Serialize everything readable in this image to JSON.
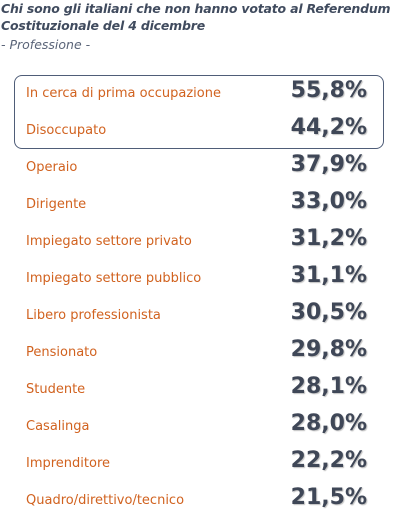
{
  "chart_data": {
    "type": "table",
    "title_line1": "Chi sono gli italiani che non hanno votato al Referendum",
    "title_line2": "Costituzionale del 4 dicembre",
    "subtitle": "- Professione -",
    "highlighted_rows": 2,
    "colors": {
      "label": "#d1621f",
      "value": "#3f4757",
      "title": "#404b5e",
      "box": "#4f5d78"
    },
    "rows": [
      {
        "label": "In cerca di prima occupazione",
        "value": "55,8%"
      },
      {
        "label": "Disoccupato",
        "value": "44,2%"
      },
      {
        "label": "Operaio",
        "value": "37,9%"
      },
      {
        "label": "Dirigente",
        "value": "33,0%"
      },
      {
        "label": "Impiegato settore privato",
        "value": "31,2%"
      },
      {
        "label": "Impiegato settore pubblico",
        "value": "31,1%"
      },
      {
        "label": "Libero professionista",
        "value": "30,5%"
      },
      {
        "label": "Pensionato",
        "value": "29,8%"
      },
      {
        "label": "Studente",
        "value": "28,1%"
      },
      {
        "label": "Casalinga",
        "value": "28,0%"
      },
      {
        "label": "Imprenditore",
        "value": "22,2%"
      },
      {
        "label": "Quadro/direttivo/tecnico",
        "value": "21,5%"
      }
    ]
  }
}
